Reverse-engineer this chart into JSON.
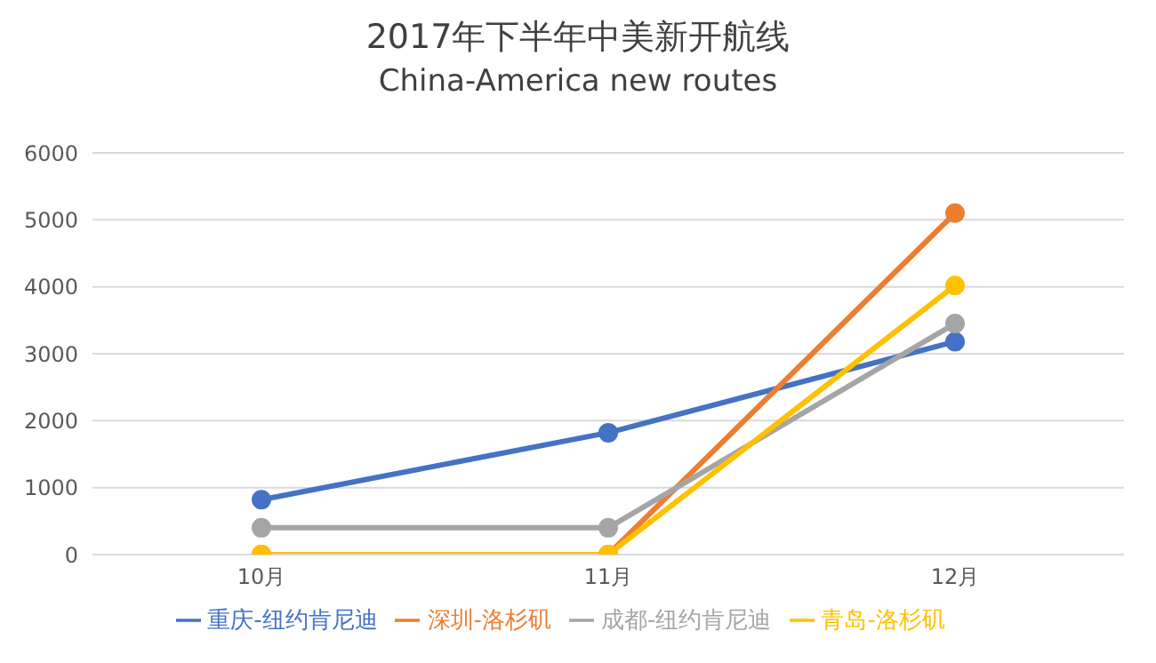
{
  "chart_data": {
    "type": "line",
    "title": "2017年下半年中美新开航线",
    "subtitle": "China-America new routes",
    "categories": [
      "10月",
      "11月",
      "12月"
    ],
    "series": [
      {
        "name": "重庆-纽约肯尼迪",
        "color": "#4472c4",
        "values": [
          820,
          1820,
          3180
        ]
      },
      {
        "name": "深圳-洛杉矶",
        "color": "#ed7d31",
        "values": [
          0,
          0,
          5100
        ]
      },
      {
        "name": "成都-纽约肯尼迪",
        "color": "#a5a5a5",
        "values": [
          400,
          400,
          3450
        ]
      },
      {
        "name": "青岛-洛杉矶",
        "color": "#ffc000",
        "values": [
          0,
          0,
          4020
        ]
      }
    ],
    "ylim": [
      0,
      6000
    ],
    "yticks": [
      0,
      1000,
      2000,
      3000,
      4000,
      5000,
      6000
    ],
    "grid": "y",
    "legend": "bottom",
    "marker": "circle",
    "line_style": "solid"
  }
}
